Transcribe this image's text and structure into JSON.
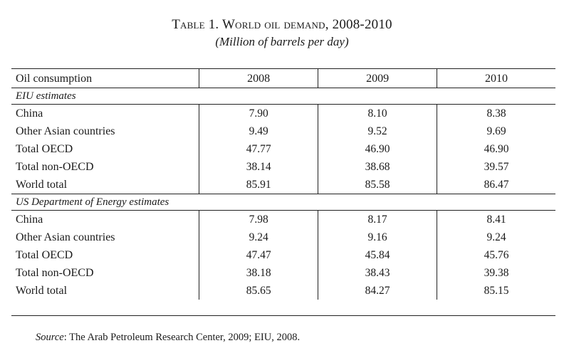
{
  "title": "Table 1. World oil demand, 2008-2010",
  "subtitle": "(Million of barrels per day)",
  "table": {
    "header": {
      "label": "Oil consumption",
      "years": [
        "2008",
        "2009",
        "2010"
      ]
    },
    "sections": [
      {
        "name": "EIU estimates",
        "rows": [
          {
            "label": "China",
            "values": [
              "7.90",
              "8.10",
              "8.38"
            ]
          },
          {
            "label": "Other Asian countries",
            "values": [
              "9.49",
              "9.52",
              "9.69"
            ]
          },
          {
            "label": "Total OECD",
            "values": [
              "47.77",
              "46.90",
              "46.90"
            ]
          },
          {
            "label": "Total non-OECD",
            "values": [
              "38.14",
              "38.68",
              "39.57"
            ]
          },
          {
            "label": "World total",
            "values": [
              "85.91",
              "85.58",
              "86.47"
            ]
          }
        ]
      },
      {
        "name": "US Department of Energy estimates",
        "rows": [
          {
            "label": "China",
            "values": [
              "7.98",
              "8.17",
              "8.41"
            ]
          },
          {
            "label": "Other Asian countries",
            "values": [
              "9.24",
              "9.16",
              "9.24"
            ]
          },
          {
            "label": "Total OECD",
            "values": [
              "47.47",
              "45.84",
              "45.76"
            ]
          },
          {
            "label": "Total non-OECD",
            "values": [
              "38.18",
              "38.43",
              "39.38"
            ]
          },
          {
            "label": "World total",
            "values": [
              "85.65",
              "84.27",
              "85.15"
            ]
          }
        ]
      }
    ]
  },
  "source": {
    "label": "Source",
    "text": ": The Arab Petroleum Research Center, 2009; EIU, 2008."
  }
}
